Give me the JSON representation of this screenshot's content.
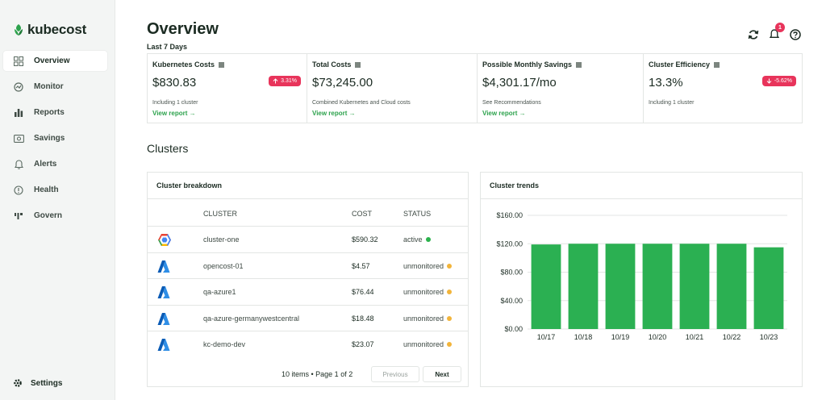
{
  "brand": {
    "name": "kubecost"
  },
  "sidebar": {
    "items": [
      {
        "label": "Overview",
        "icon": "grid-icon",
        "active": true
      },
      {
        "label": "Monitor",
        "icon": "gauge-icon",
        "active": false
      },
      {
        "label": "Reports",
        "icon": "bar-chart-icon",
        "active": false
      },
      {
        "label": "Savings",
        "icon": "money-icon",
        "active": false
      },
      {
        "label": "Alerts",
        "icon": "bell-icon",
        "active": false
      },
      {
        "label": "Health",
        "icon": "alert-circle-icon",
        "active": false
      },
      {
        "label": "Govern",
        "icon": "govern-icon",
        "active": false
      }
    ],
    "settings_label": "Settings"
  },
  "header": {
    "title": "Overview",
    "subtitle": "Last 7 Days",
    "notification_count": "1"
  },
  "kpis": [
    {
      "title": "Kubernetes Costs",
      "value": "$830.83",
      "badge": "3.31%",
      "badge_dir": "up",
      "note": "Including 1 cluster",
      "link": "View report →"
    },
    {
      "title": "Total Costs",
      "value": "$73,245.00",
      "note": "Combined Kubernetes and Cloud costs",
      "link": "View report →"
    },
    {
      "title": "Possible Monthly Savings",
      "value": "$4,301.17/mo",
      "note": "See Recommendations",
      "link": "View report →"
    },
    {
      "title": "Cluster Efficiency",
      "value": "13.3%",
      "badge": "-5.62%",
      "badge_dir": "down",
      "note": "Including 1 cluster"
    }
  ],
  "clusters_section": {
    "title": "Clusters"
  },
  "breakdown": {
    "title": "Cluster breakdown",
    "columns": [
      "CLUSTER",
      "COST",
      "STATUS"
    ],
    "rows": [
      {
        "provider": "gcp-icon",
        "cluster": "cluster-one",
        "cost": "$590.32",
        "status": "active",
        "status_color": "#2bb24c"
      },
      {
        "provider": "azure-icon",
        "cluster": "opencost-01",
        "cost": "$4.57",
        "status": "unmonitored",
        "status_color": "#f2b43a"
      },
      {
        "provider": "azure-icon",
        "cluster": "qa-azure1",
        "cost": "$76.44",
        "status": "unmonitored",
        "status_color": "#f2b43a"
      },
      {
        "provider": "azure-icon",
        "cluster": "qa-azure-germanywestcentral",
        "cost": "$18.48",
        "status": "unmonitored",
        "status_color": "#f2b43a"
      },
      {
        "provider": "azure-icon",
        "cluster": "kc-demo-dev",
        "cost": "$23.07",
        "status": "unmonitored",
        "status_color": "#f2b43a"
      }
    ],
    "pagination": {
      "info": "10 items • Page 1 of 2",
      "prev": "Previous",
      "next": "Next"
    }
  },
  "trends": {
    "title": "Cluster trends"
  },
  "chart_data": {
    "type": "bar",
    "categories": [
      "10/17",
      "10/18",
      "10/19",
      "10/20",
      "10/21",
      "10/22",
      "10/23"
    ],
    "values": [
      119,
      120,
      120,
      120,
      120,
      120,
      115
    ],
    "ylim": [
      0,
      160
    ],
    "yticks": [
      "$0.00",
      "$40.00",
      "$80.00",
      "$120.00",
      "$160.00"
    ],
    "ytick_values": [
      0,
      40,
      80,
      120,
      160
    ],
    "bar_color": "#2bb052",
    "grid": true
  }
}
